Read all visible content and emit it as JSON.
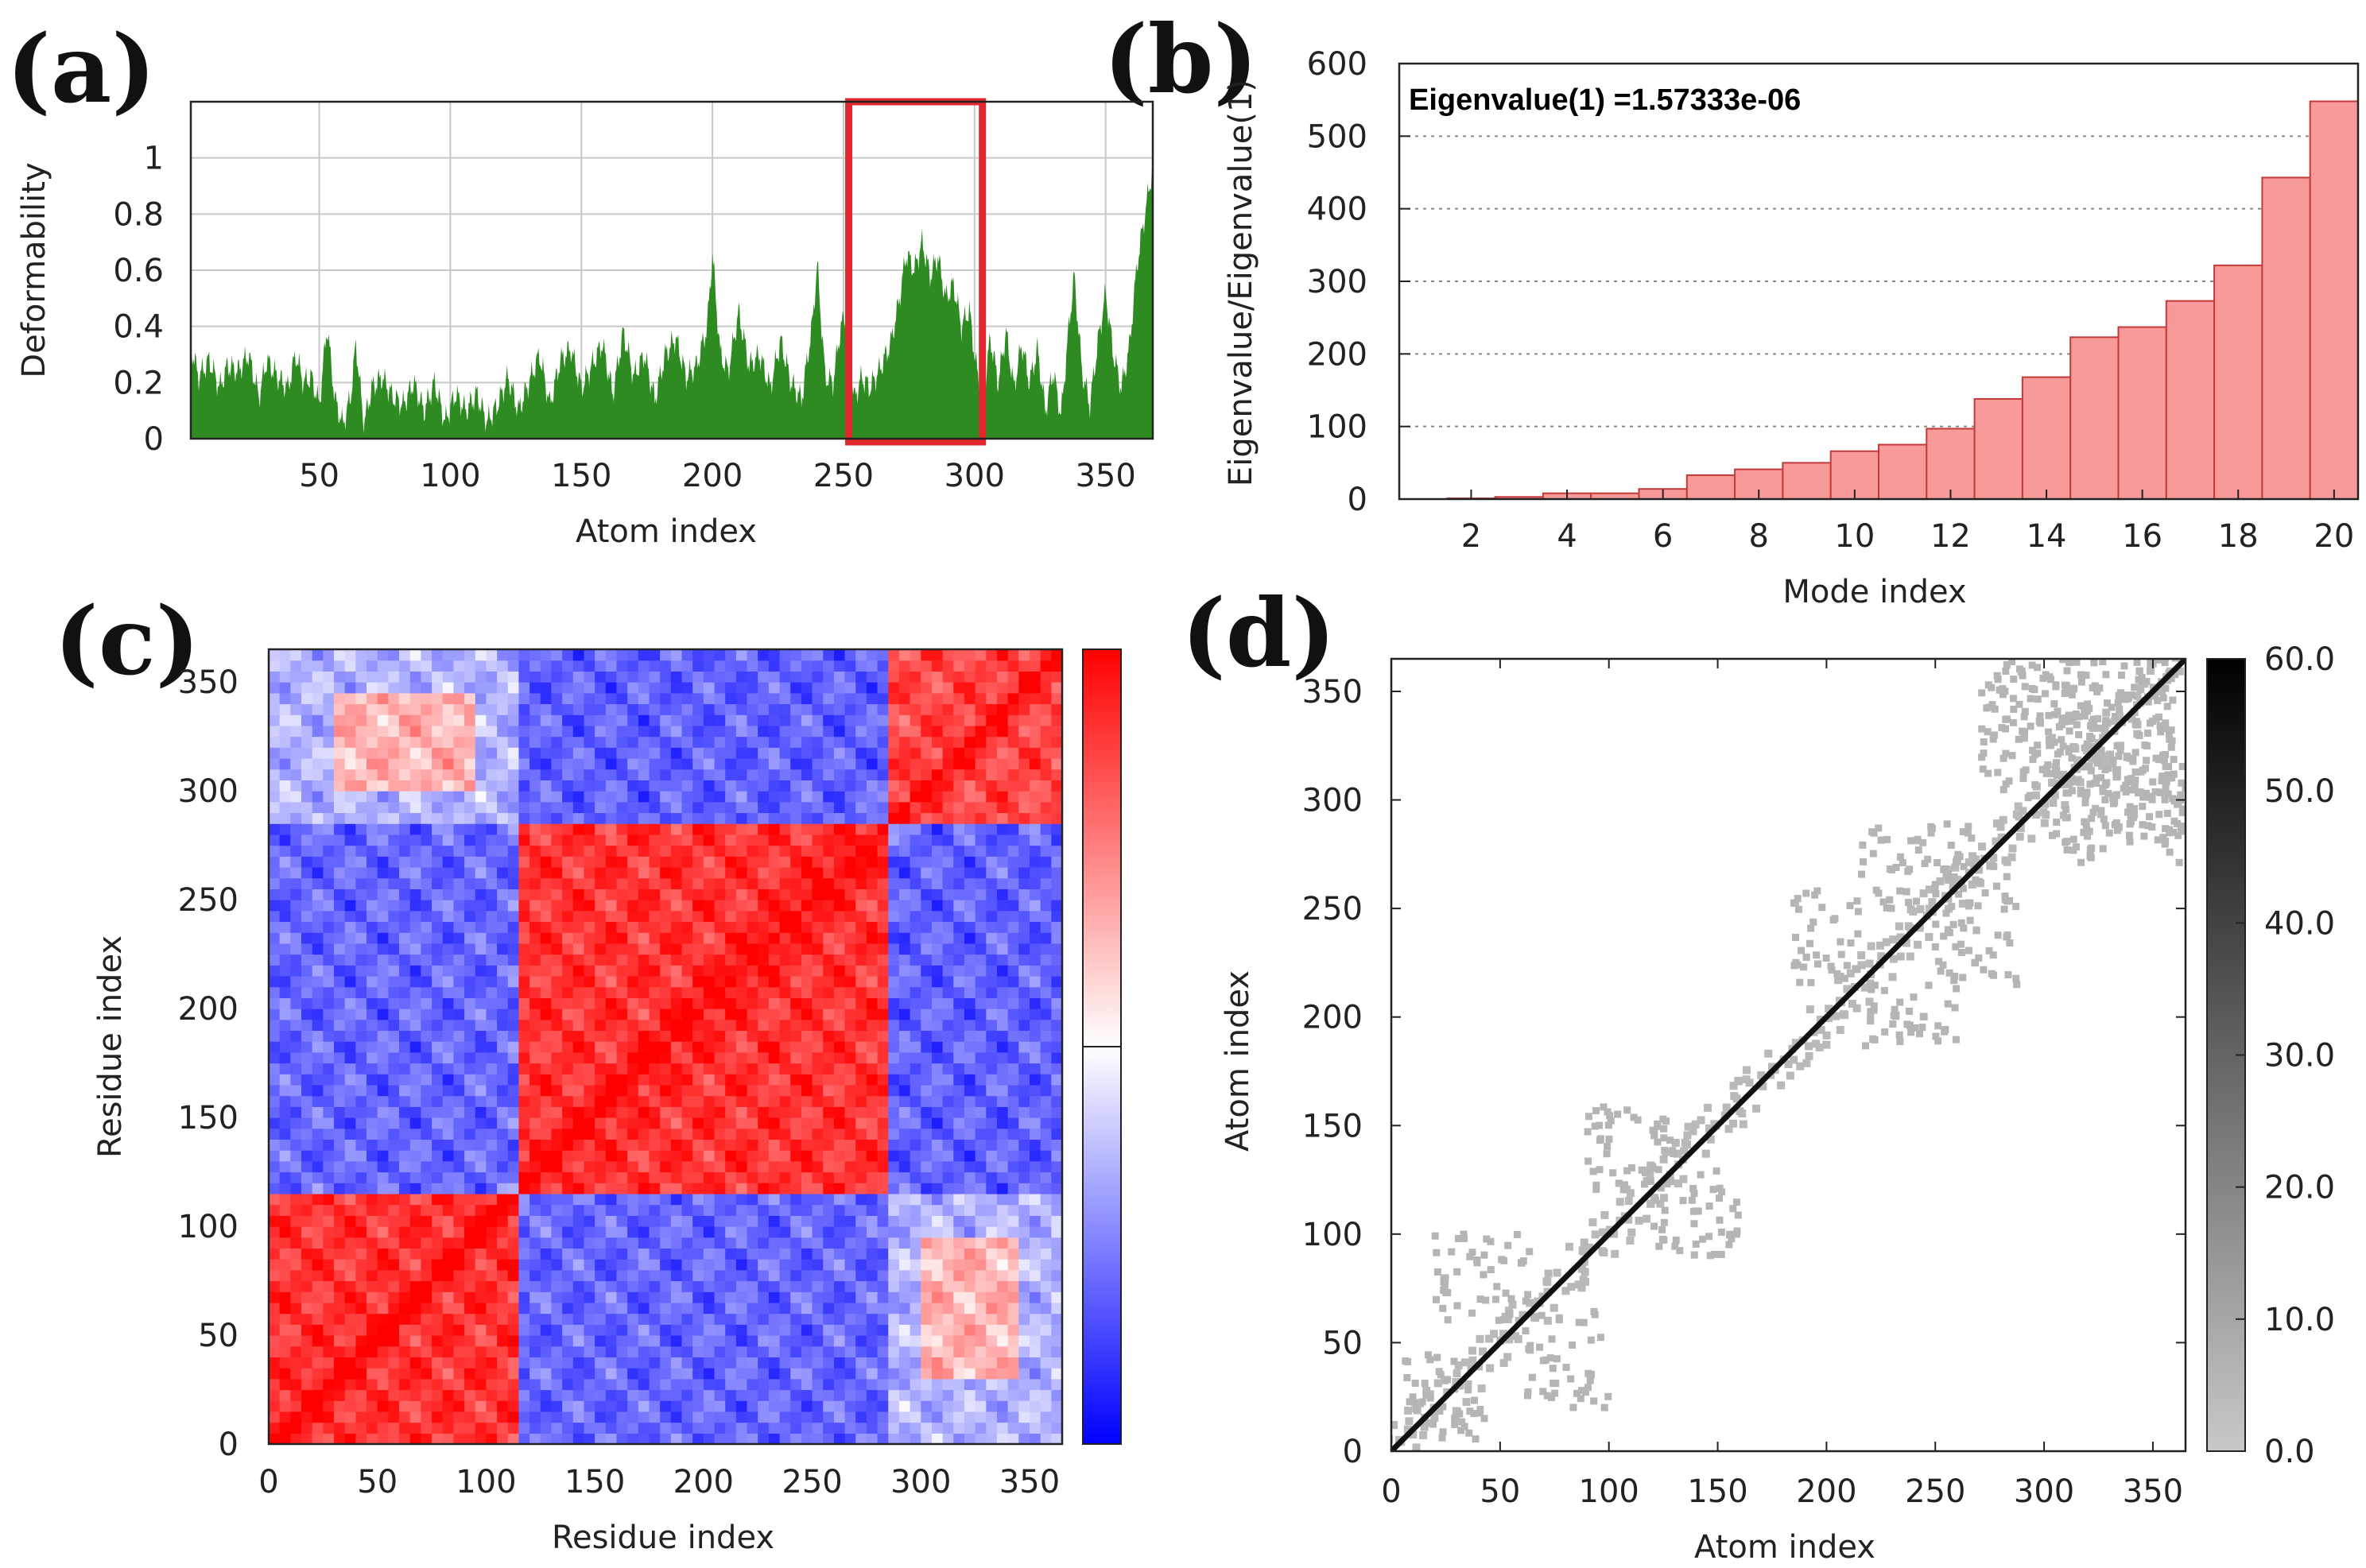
{
  "chart_data": [
    {
      "panel": "(a)",
      "type": "area",
      "xlabel": "Atom index",
      "ylabel": "Deformability",
      "xlim": [
        1,
        368
      ],
      "ylim": [
        0,
        1.2
      ],
      "xticks": [
        50,
        100,
        150,
        200,
        250,
        300,
        350
      ],
      "yticks": [
        0,
        0.2,
        0.4,
        0.6,
        0.8,
        1
      ],
      "grid": true,
      "color": "#2e8b22",
      "highlight": {
        "x_range": [
          252,
          303
        ],
        "color": "#e0282e"
      },
      "peaks": [
        [
          1,
          0.33
        ],
        [
          4,
          0.22
        ],
        [
          8,
          0.28
        ],
        [
          12,
          0.18
        ],
        [
          15,
          0.26
        ],
        [
          19,
          0.24
        ],
        [
          23,
          0.3
        ],
        [
          27,
          0.15
        ],
        [
          30,
          0.28
        ],
        [
          34,
          0.22
        ],
        [
          38,
          0.18
        ],
        [
          41,
          0.3
        ],
        [
          44,
          0.2
        ],
        [
          47,
          0.22
        ],
        [
          50,
          0.12
        ],
        [
          53,
          0.4
        ],
        [
          56,
          0.14
        ],
        [
          59,
          0.05
        ],
        [
          62,
          0.15
        ],
        [
          64,
          0.34
        ],
        [
          67,
          0.05
        ],
        [
          70,
          0.18
        ],
        [
          74,
          0.22
        ],
        [
          78,
          0.15
        ],
        [
          82,
          0.12
        ],
        [
          86,
          0.2
        ],
        [
          90,
          0.1
        ],
        [
          94,
          0.2
        ],
        [
          98,
          0.06
        ],
        [
          102,
          0.16
        ],
        [
          106,
          0.1
        ],
        [
          110,
          0.16
        ],
        [
          114,
          0.06
        ],
        [
          118,
          0.12
        ],
        [
          122,
          0.22
        ],
        [
          126,
          0.1
        ],
        [
          130,
          0.2
        ],
        [
          134,
          0.3
        ],
        [
          138,
          0.12
        ],
        [
          142,
          0.28
        ],
        [
          146,
          0.32
        ],
        [
          150,
          0.18
        ],
        [
          154,
          0.26
        ],
        [
          158,
          0.34
        ],
        [
          162,
          0.16
        ],
        [
          166,
          0.38
        ],
        [
          170,
          0.22
        ],
        [
          174,
          0.3
        ],
        [
          178,
          0.14
        ],
        [
          182,
          0.3
        ],
        [
          186,
          0.36
        ],
        [
          190,
          0.22
        ],
        [
          194,
          0.26
        ],
        [
          198,
          0.4
        ],
        [
          200,
          0.66
        ],
        [
          203,
          0.3
        ],
        [
          206,
          0.24
        ],
        [
          210,
          0.45
        ],
        [
          214,
          0.26
        ],
        [
          218,
          0.3
        ],
        [
          222,
          0.18
        ],
        [
          226,
          0.35
        ],
        [
          230,
          0.2
        ],
        [
          234,
          0.14
        ],
        [
          238,
          0.4
        ],
        [
          240,
          0.62
        ],
        [
          243,
          0.22
        ],
        [
          246,
          0.2
        ],
        [
          249,
          0.4
        ],
        [
          251,
          0.44
        ],
        [
          254,
          0.14
        ],
        [
          257,
          0.22
        ],
        [
          260,
          0.18
        ],
        [
          264,
          0.25
        ],
        [
          268,
          0.34
        ],
        [
          271,
          0.48
        ],
        [
          274,
          0.66
        ],
        [
          277,
          0.6
        ],
        [
          280,
          0.7
        ],
        [
          283,
          0.58
        ],
        [
          286,
          0.65
        ],
        [
          289,
          0.5
        ],
        [
          292,
          0.55
        ],
        [
          295,
          0.4
        ],
        [
          298,
          0.46
        ],
        [
          300,
          0.3
        ],
        [
          303,
          0.12
        ],
        [
          306,
          0.36
        ],
        [
          309,
          0.2
        ],
        [
          312,
          0.38
        ],
        [
          315,
          0.18
        ],
        [
          318,
          0.34
        ],
        [
          321,
          0.2
        ],
        [
          324,
          0.32
        ],
        [
          327,
          0.1
        ],
        [
          330,
          0.24
        ],
        [
          333,
          0.08
        ],
        [
          336,
          0.4
        ],
        [
          338,
          0.58
        ],
        [
          341,
          0.24
        ],
        [
          344,
          0.12
        ],
        [
          347,
          0.34
        ],
        [
          350,
          0.52
        ],
        [
          353,
          0.3
        ],
        [
          356,
          0.18
        ],
        [
          359,
          0.32
        ],
        [
          362,
          0.62
        ],
        [
          365,
          0.8
        ],
        [
          368,
          0.97
        ]
      ]
    },
    {
      "panel": "(b)",
      "type": "bar",
      "xlabel": "Mode index",
      "ylabel": "Eigenvalue/Eigenvalue(1)",
      "annotation": "Eigenvalue(1) =1.57333e-06",
      "xlim": [
        0,
        20
      ],
      "ylim": [
        0,
        600
      ],
      "xticks": [
        2,
        4,
        6,
        8,
        10,
        12,
        14,
        16,
        18,
        20
      ],
      "yticks": [
        0,
        100,
        200,
        300,
        400,
        500,
        600
      ],
      "grid": "horizontal-dotted",
      "color": "#f99a9a",
      "edge_color": "#c23a3a",
      "x": [
        1,
        2,
        3,
        4,
        5,
        6,
        7,
        8,
        9,
        10,
        11,
        12,
        13,
        14,
        15,
        16,
        17,
        18,
        19,
        20
      ],
      "values": [
        0,
        1,
        3,
        8,
        8,
        14,
        33,
        41,
        50,
        66,
        75,
        97,
        138,
        168,
        223,
        237,
        273,
        322,
        443,
        548
      ]
    },
    {
      "panel": "(c)",
      "type": "heatmap",
      "xlabel": "Residue index",
      "ylabel": "Residue index",
      "xlim": [
        0,
        365
      ],
      "ylim": [
        0,
        365
      ],
      "xticks": [
        0,
        50,
        100,
        150,
        200,
        250,
        300,
        350
      ],
      "yticks": [
        0,
        50,
        100,
        150,
        200,
        250,
        300,
        350
      ],
      "colormap": [
        "#0000ff",
        "#ffffff",
        "#ff0000"
      ],
      "domains": [
        [
          0,
          117
        ],
        [
          117,
          283
        ],
        [
          283,
          365
        ]
      ],
      "blocks": [
        {
          "x": [
            0,
            117
          ],
          "y": [
            0,
            117
          ],
          "level": 0.8
        },
        {
          "x": [
            117,
            283
          ],
          "y": [
            117,
            283
          ],
          "level": 0.8
        },
        {
          "x": [
            283,
            365
          ],
          "y": [
            283,
            365
          ],
          "level": 0.72
        },
        {
          "x": [
            0,
            117
          ],
          "y": [
            117,
            283
          ],
          "level": -0.6
        },
        {
          "x": [
            117,
            283
          ],
          "y": [
            0,
            117
          ],
          "level": -0.6
        },
        {
          "x": [
            117,
            283
          ],
          "y": [
            283,
            365
          ],
          "level": -0.62
        },
        {
          "x": [
            283,
            365
          ],
          "y": [
            117,
            283
          ],
          "level": -0.62
        },
        {
          "x": [
            0,
            117
          ],
          "y": [
            283,
            365
          ],
          "level": -0.3
        },
        {
          "x": [
            283,
            365
          ],
          "y": [
            0,
            117
          ],
          "level": -0.3
        },
        {
          "x": [
            30,
            95
          ],
          "y": [
            300,
            345
          ],
          "level": 0.3
        },
        {
          "x": [
            300,
            345
          ],
          "y": [
            30,
            95
          ],
          "level": 0.3
        }
      ]
    },
    {
      "panel": "(d)",
      "type": "heatmap",
      "xlabel": "Atom index",
      "ylabel": "Atom index",
      "xlim": [
        0,
        365
      ],
      "ylim": [
        0,
        365
      ],
      "xticks": [
        0,
        50,
        100,
        150,
        200,
        250,
        300,
        350
      ],
      "yticks": [
        0,
        50,
        100,
        150,
        200,
        250,
        300,
        350
      ],
      "colorbar_range": [
        0,
        60
      ],
      "colorbar_ticks": [
        "0.0",
        "10.0",
        "20.0",
        "30.0",
        "40.0",
        "50.0",
        "60.0"
      ],
      "colormap": [
        "#c8c8c8",
        "#000000"
      ],
      "diagonal_value": 60,
      "contact_value": 5,
      "contact_clusters": [
        [
          20,
          65,
          60,
          100
        ],
        [
          60,
          100,
          20,
          65
        ],
        [
          15,
          45,
          5,
          30
        ],
        [
          5,
          30,
          15,
          45
        ],
        [
          90,
          130,
          120,
          160
        ],
        [
          120,
          160,
          90,
          130
        ],
        [
          185,
          215,
          215,
          260
        ],
        [
          215,
          260,
          185,
          215
        ],
        [
          215,
          270,
          250,
          290
        ],
        [
          250,
          290,
          215,
          270
        ],
        [
          280,
          360,
          300,
          365
        ],
        [
          300,
          365,
          280,
          360
        ],
        [
          310,
          365,
          270,
          320
        ],
        [
          270,
          320,
          310,
          365
        ]
      ]
    }
  ]
}
